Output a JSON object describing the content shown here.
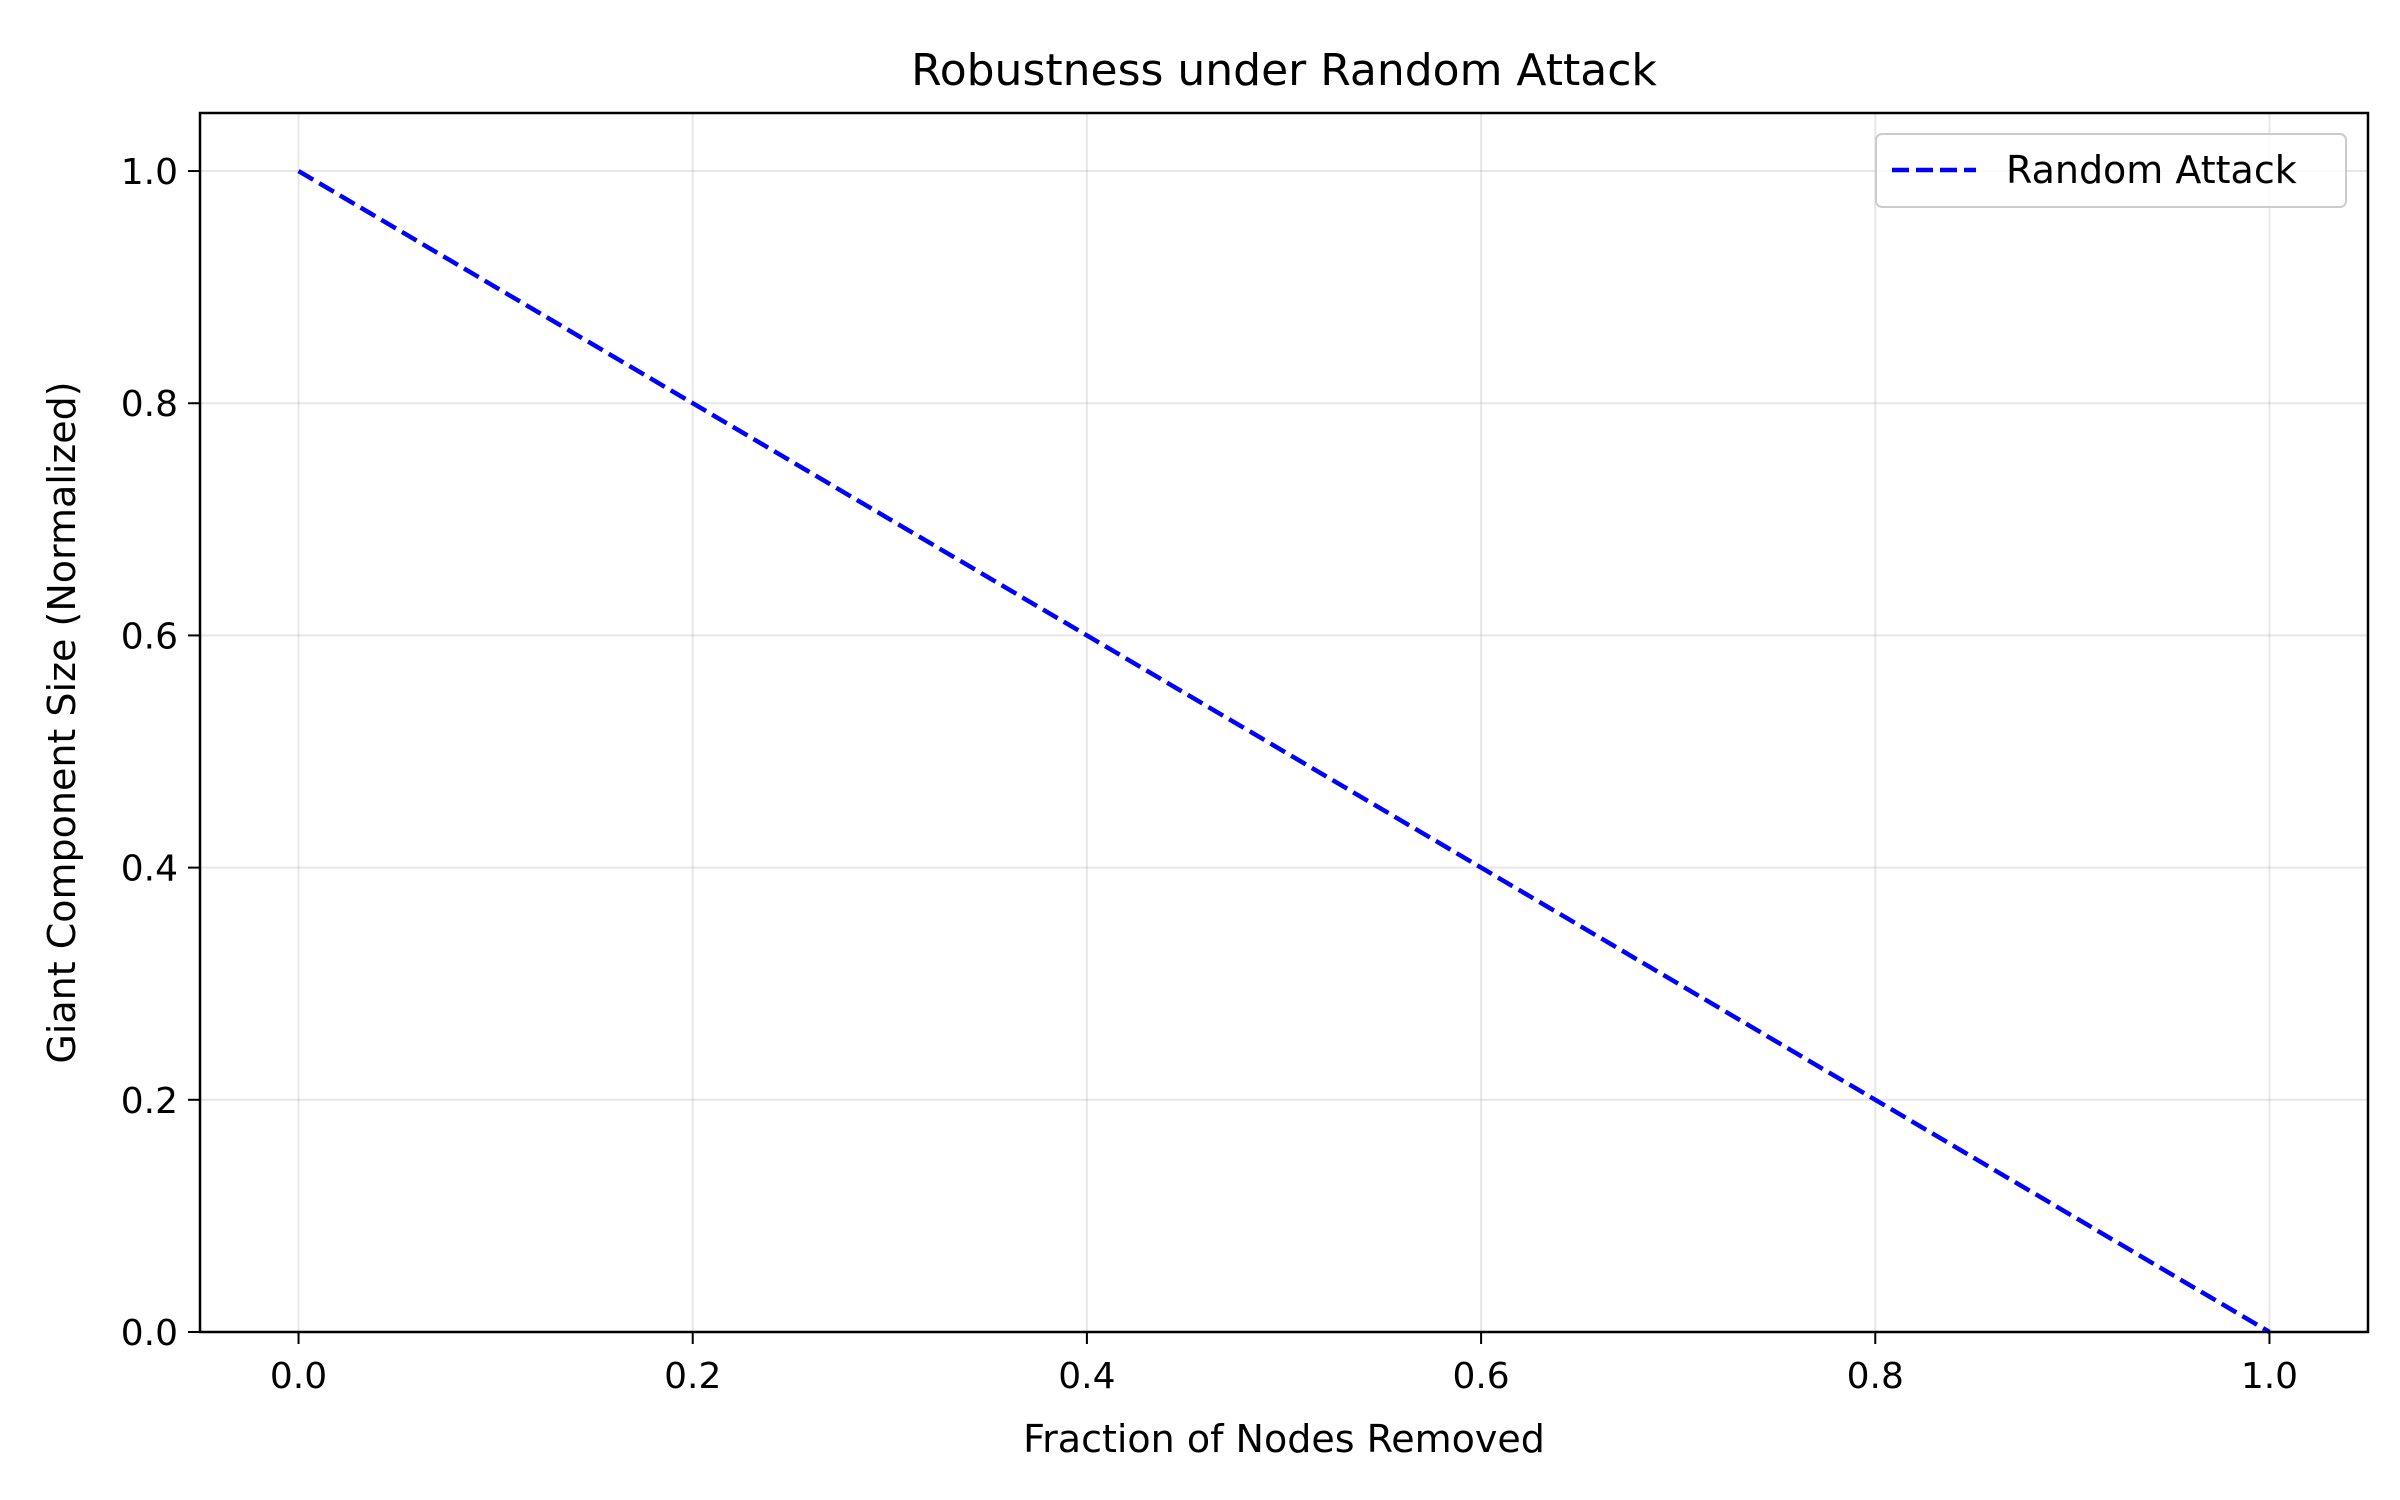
{
  "chart_data": {
    "type": "line",
    "title": "Robustness under Random Attack",
    "xlabel": "Fraction of Nodes Removed",
    "ylabel": "Giant Component Size (Normalized)",
    "xlim": [
      -0.05,
      1.05
    ],
    "ylim": [
      0.0,
      1.05
    ],
    "xticks": [
      0.0,
      0.2,
      0.4,
      0.6,
      0.8,
      1.0
    ],
    "xtick_labels": [
      "0.0",
      "0.2",
      "0.4",
      "0.6",
      "0.8",
      "1.0"
    ],
    "yticks": [
      0.0,
      0.2,
      0.4,
      0.6,
      0.8,
      1.0
    ],
    "ytick_labels": [
      "0.0",
      "0.2",
      "0.4",
      "0.6",
      "0.8",
      "1.0"
    ],
    "grid": true,
    "legend_position": "top-right",
    "series": [
      {
        "name": "Random Attack",
        "color": "#0000ff",
        "line_style": "dashed",
        "x": [
          0.0,
          0.1,
          0.2,
          0.3,
          0.4,
          0.5,
          0.6,
          0.7,
          0.8,
          0.9,
          1.0
        ],
        "y": [
          1.0,
          0.9,
          0.8,
          0.7,
          0.6,
          0.5,
          0.4,
          0.3,
          0.2,
          0.1,
          0.0
        ]
      }
    ]
  }
}
